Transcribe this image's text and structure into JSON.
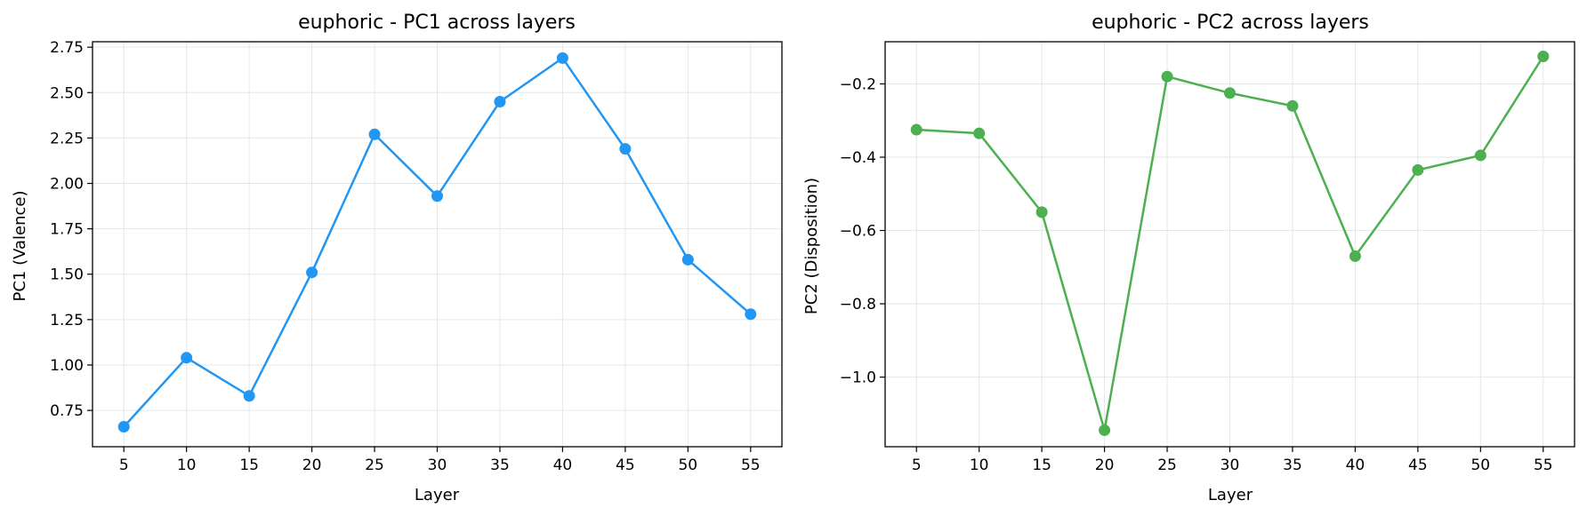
{
  "chart_data": [
    {
      "type": "line",
      "title": "euphoric - PC1 across layers",
      "xlabel": "Layer",
      "ylabel": "PC1 (Valence)",
      "x": [
        5,
        10,
        15,
        20,
        25,
        30,
        35,
        40,
        45,
        50,
        55
      ],
      "xlim": [
        2.5,
        57.5
      ],
      "ylim": [
        0.55,
        2.78
      ],
      "xticks": [
        "5",
        "10",
        "15",
        "20",
        "25",
        "30",
        "35",
        "40",
        "45",
        "50",
        "55"
      ],
      "yticks": [
        0.75,
        1.0,
        1.25,
        1.5,
        1.75,
        2.0,
        2.25,
        2.5,
        2.75
      ],
      "ytick_labels": [
        "0.75",
        "1.00",
        "1.25",
        "1.50",
        "1.75",
        "2.00",
        "2.25",
        "2.50",
        "2.75"
      ],
      "grid": true,
      "series": [
        {
          "color": "#2196f3",
          "values": [
            0.66,
            1.04,
            0.83,
            1.51,
            2.27,
            1.93,
            2.45,
            2.69,
            2.19,
            1.58,
            1.28
          ]
        }
      ]
    },
    {
      "type": "line",
      "title": "euphoric - PC2 across layers",
      "xlabel": "Layer",
      "ylabel": "PC2 (Disposition)",
      "x": [
        5,
        10,
        15,
        20,
        25,
        30,
        35,
        40,
        45,
        50,
        55
      ],
      "xlim": [
        2.5,
        57.5
      ],
      "ylim": [
        -1.19,
        -0.085
      ],
      "xticks": [
        "5",
        "10",
        "15",
        "20",
        "25",
        "30",
        "35",
        "40",
        "45",
        "50",
        "55"
      ],
      "yticks": [
        -1.0,
        -0.8,
        -0.6,
        -0.4,
        -0.2
      ],
      "ytick_labels": [
        "−1.0",
        "−0.8",
        "−0.6",
        "−0.4",
        "−0.2"
      ],
      "grid": true,
      "series": [
        {
          "color": "#4caf50",
          "values": [
            -0.325,
            -0.335,
            -0.55,
            -1.145,
            -0.18,
            -0.225,
            -0.26,
            -0.67,
            -0.435,
            -0.395,
            -0.125
          ]
        }
      ]
    }
  ]
}
